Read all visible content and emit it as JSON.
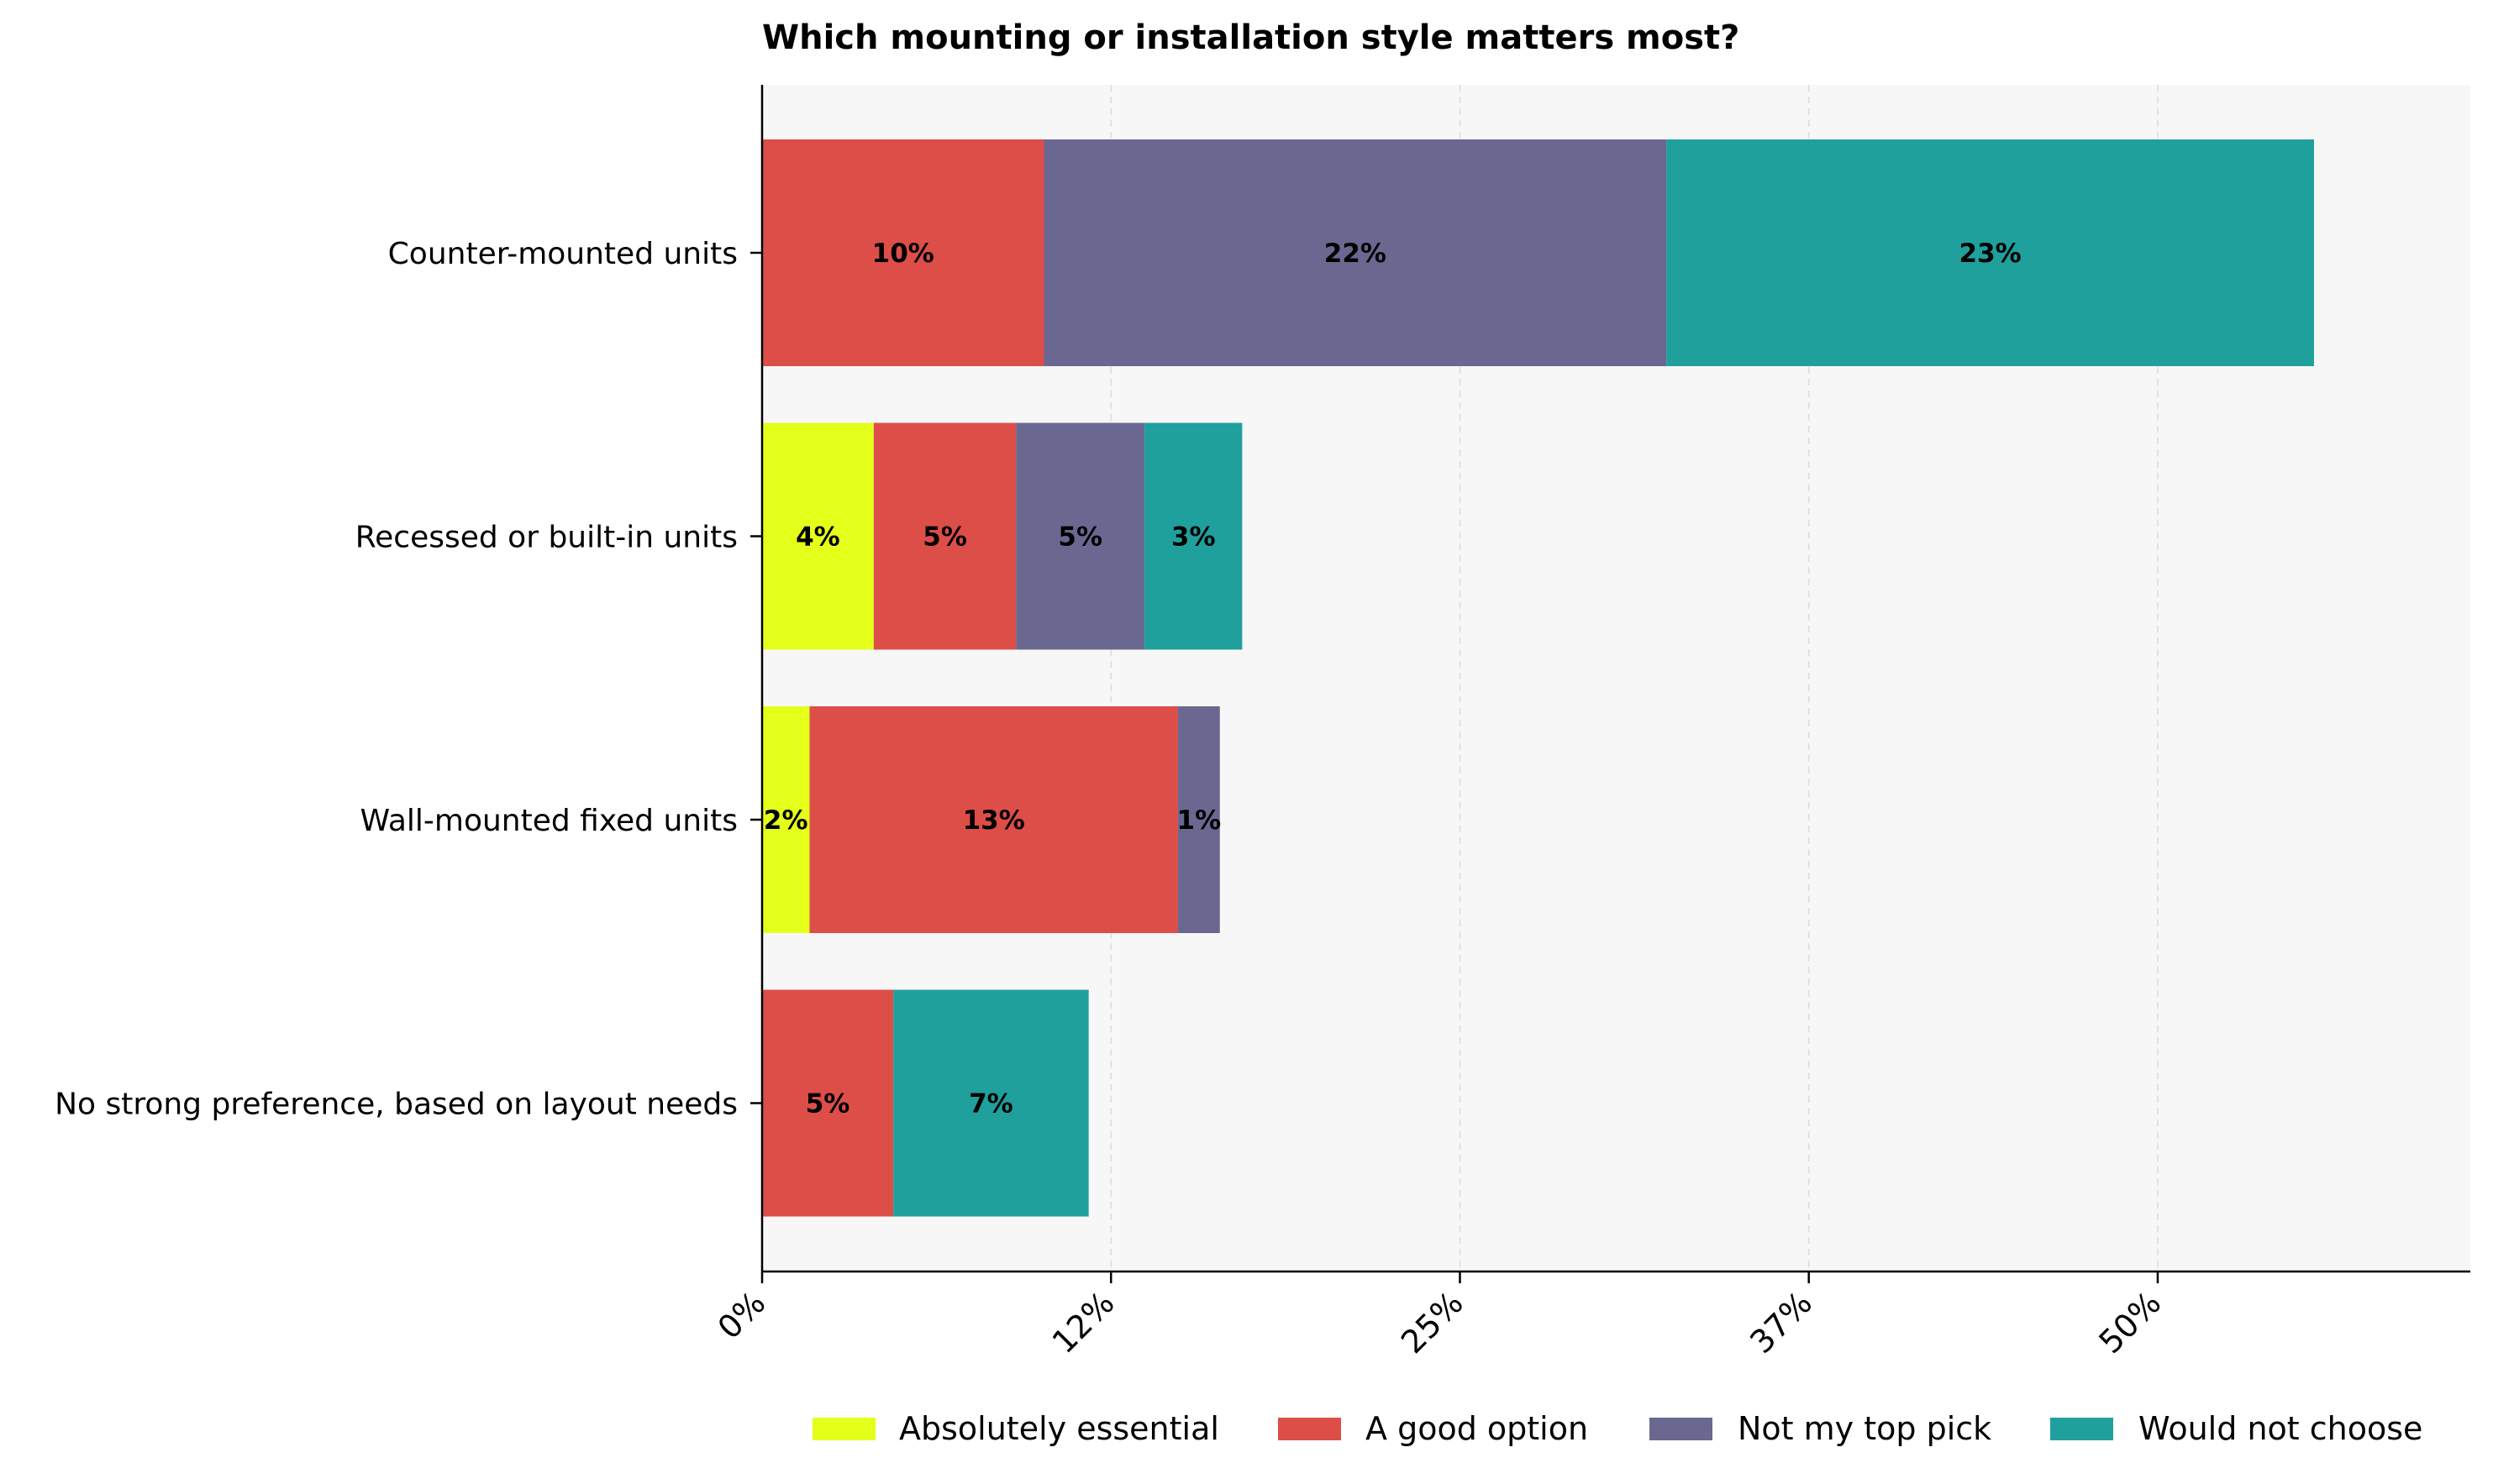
{
  "chart_data": {
    "type": "bar",
    "orientation": "horizontal",
    "stacked": true,
    "title": "Which mounting or installation style matters most?",
    "xlabel": "",
    "ylabel": "",
    "categories": [
      "Counter-mounted units",
      "Recessed or built-in units",
      "Wall-mounted fixed units",
      "No strong preference, based on layout needs"
    ],
    "series": [
      {
        "name": "Absolutely essential",
        "color": "#e4ff1a",
        "values": [
          0,
          4,
          1.7,
          0
        ],
        "labels": [
          "",
          "4%",
          "2%",
          ""
        ]
      },
      {
        "name": "A good option",
        "color": "#dd4e48",
        "values": [
          10.1,
          5.1,
          13.2,
          4.7
        ],
        "labels": [
          "10%",
          "5%",
          "13%",
          "5%"
        ]
      },
      {
        "name": "Not my top pick",
        "color": "#6a6890",
        "values": [
          22.3,
          4.6,
          1.5,
          0
        ],
        "labels": [
          "22%",
          "5%",
          "1%",
          ""
        ]
      },
      {
        "name": "Would not choose",
        "color": "#1fa09d",
        "values": [
          23.2,
          3.5,
          0,
          7
        ],
        "labels": [
          "23%",
          "3%",
          "",
          "7%"
        ]
      }
    ],
    "xticks": [
      0,
      12.5,
      25,
      37.5,
      50
    ],
    "xtick_labels": [
      "0%",
      "12%",
      "25%",
      "37%",
      "50%"
    ],
    "xlim": [
      0,
      61.2
    ],
    "grid": "x dashed",
    "legend": "bottom",
    "background": "#f7f7f7"
  }
}
